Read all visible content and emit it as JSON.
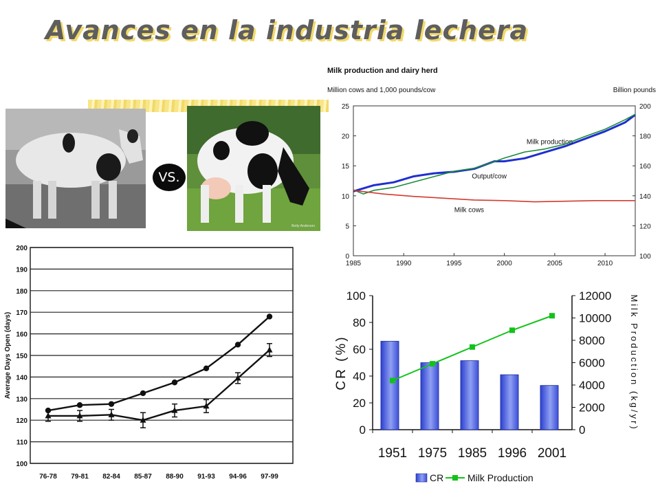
{
  "slide": {
    "title": "Avances en la industria lechera",
    "vs_label": "VS.",
    "photo_credit": "Betty Anderson"
  },
  "chart_data": [
    {
      "type": "line",
      "title": "Milk production and dairy herd",
      "left_axis_label": "Million cows and 1,000 pounds/cow",
      "right_axis_label": "Billion pounds",
      "x_ticks": [
        1985,
        1990,
        1995,
        2000,
        2005,
        2010
      ],
      "left_ticks": [
        0,
        5,
        10,
        15,
        20,
        25
      ],
      "right_ticks": [
        100,
        120,
        140,
        160,
        180,
        200
      ],
      "xlim": [
        1985,
        2013
      ],
      "ylim_left": [
        0,
        25
      ],
      "ylim_right": [
        100,
        200
      ],
      "grid": false,
      "series": [
        {
          "name": "Milk production",
          "axis": "right",
          "color": "#1f2fd0",
          "x": [
            1985,
            1987,
            1989,
            1991,
            1993,
            1995,
            1997,
            1999,
            2000,
            2002,
            2004,
            2006,
            2008,
            2010,
            2012,
            2013
          ],
          "values": [
            143,
            147,
            149,
            153,
            155,
            156,
            158,
            163,
            163,
            165,
            169,
            173,
            178,
            183,
            189,
            194
          ]
        },
        {
          "name": "Output/cow",
          "axis": "left",
          "color": "#1b8a3a",
          "x": [
            1985,
            1986,
            1987,
            1989,
            1991,
            1993,
            1995,
            1997,
            1999,
            2000,
            2002,
            2004,
            2006,
            2008,
            2010,
            2012,
            2013
          ],
          "values": [
            11.0,
            10.3,
            10.9,
            11.4,
            12.3,
            13.2,
            14.1,
            14.6,
            15.7,
            16.3,
            17.3,
            17.8,
            18.6,
            19.9,
            21.1,
            22.7,
            23.6
          ]
        },
        {
          "name": "Milk cows",
          "axis": "left",
          "color": "#d23a2c",
          "x": [
            1985,
            1988,
            1991,
            1994,
            1997,
            2000,
            2003,
            2006,
            2009,
            2012,
            2013
          ],
          "values": [
            10.9,
            10.3,
            9.9,
            9.6,
            9.3,
            9.2,
            9.0,
            9.1,
            9.2,
            9.2,
            9.2
          ]
        }
      ]
    },
    {
      "type": "line",
      "ylabel": "Average Days Open (days)",
      "categories": [
        "76-78",
        "79-81",
        "82-84",
        "85-87",
        "88-90",
        "91-93",
        "94-96",
        "97-99"
      ],
      "y_ticks": [
        100,
        110,
        120,
        130,
        140,
        150,
        160,
        170,
        180,
        190,
        200
      ],
      "ylim": [
        100,
        200
      ],
      "grid": true,
      "series": [
        {
          "marker": "circle",
          "values": [
            124.5,
            127,
            127.5,
            132.5,
            137.5,
            144,
            155,
            168
          ]
        },
        {
          "marker": "triangle",
          "values": [
            122,
            122,
            122.5,
            120,
            124.5,
            126.5,
            139.5,
            152.5
          ],
          "error": [
            2.5,
            2.5,
            2.5,
            3.5,
            3,
            3,
            2.5,
            3
          ]
        }
      ]
    },
    {
      "type": "bar",
      "categories": [
        "1951",
        "1975",
        "1985",
        "1996",
        "2001"
      ],
      "ylabel": "CR (%)",
      "y2label": "Milk Production (kg/yr)",
      "ylim": [
        0,
        100
      ],
      "y2lim": [
        0,
        12000
      ],
      "y_ticks": [
        0,
        20,
        40,
        60,
        80,
        100
      ],
      "y2_ticks": [
        0,
        2000,
        4000,
        6000,
        8000,
        10000,
        12000
      ],
      "legend_position": "bottom",
      "series": [
        {
          "name": "CR",
          "kind": "bar",
          "color": "#4a5fd8",
          "values": [
            66,
            50,
            51.5,
            41,
            33
          ]
        },
        {
          "name": "Milk Production",
          "kind": "line",
          "axis": "right",
          "color": "#12c21a",
          "values": [
            4400,
            5900,
            7400,
            8900,
            10200
          ]
        }
      ]
    }
  ]
}
